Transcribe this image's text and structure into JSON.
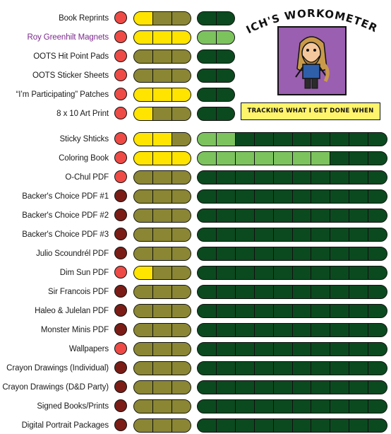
{
  "header": {
    "title": "RICH'S WORKOMETER!",
    "tagline": "TRACKING WHAT I GET DONE WHEN",
    "portrait_icon": "cartoon-portrait-icon",
    "colors": {
      "portrait_bg": "#9a5fb0",
      "tagline_bg": "#fff46b"
    }
  },
  "colors": {
    "dot_on": "#ef4b46",
    "dot_off": "#7b1d16",
    "stage_done": "#ffe400",
    "stage_pending": "#8a8634",
    "progress_done": "#7cc35e",
    "progress_pending": "#0b4a1f"
  },
  "items": [
    {
      "label": "Book Reprints",
      "dot": "on",
      "stages": [
        1,
        0,
        0
      ],
      "progress": {
        "done": 0,
        "total": 2
      }
    },
    {
      "label": "Roy Greenhilt Magnets",
      "highlight": true,
      "dot": "on",
      "stages": [
        1,
        1,
        1
      ],
      "progress": {
        "done": 2,
        "total": 2
      }
    },
    {
      "label": "OOTS Hit Point Pads",
      "dot": "on",
      "stages": [
        0,
        0,
        0
      ],
      "progress": {
        "done": 0,
        "total": 2
      }
    },
    {
      "label": "OOTS Sticker Sheets",
      "dot": "on",
      "stages": [
        0,
        0,
        0
      ],
      "progress": {
        "done": 0,
        "total": 2
      }
    },
    {
      "label": "“I’m Participating” Patches",
      "dot": "on",
      "stages": [
        1,
        1,
        1
      ],
      "progress": {
        "done": 0,
        "total": 2
      }
    },
    {
      "label": "8 x 10 Art Print",
      "dot": "on",
      "stages": [
        1,
        0,
        0
      ],
      "progress": {
        "done": 0,
        "total": 2
      }
    },
    {
      "label": "Sticky Shticks",
      "dot": "on",
      "stages": [
        1,
        1,
        0
      ],
      "progress": {
        "done": 2,
        "total": 10
      }
    },
    {
      "label": "Coloring Book",
      "dot": "on",
      "stages": [
        1,
        1,
        1
      ],
      "progress": {
        "done": 7,
        "total": 10
      }
    },
    {
      "label": "O-Chul PDF",
      "dot": "on",
      "stages": [
        0,
        0,
        0
      ],
      "progress": {
        "done": 0,
        "total": 10
      }
    },
    {
      "label": "Backer's Choice PDF #1",
      "dot": "off",
      "stages": [
        0,
        0,
        0
      ],
      "progress": {
        "done": 0,
        "total": 10
      }
    },
    {
      "label": "Backer's Choice PDF #2",
      "dot": "off",
      "stages": [
        0,
        0,
        0
      ],
      "progress": {
        "done": 0,
        "total": 10
      }
    },
    {
      "label": "Backer's Choice PDF #3",
      "dot": "off",
      "stages": [
        0,
        0,
        0
      ],
      "progress": {
        "done": 0,
        "total": 10
      }
    },
    {
      "label": "Julio Scoundrél PDF",
      "dot": "off",
      "stages": [
        0,
        0,
        0
      ],
      "progress": {
        "done": 0,
        "total": 10
      }
    },
    {
      "label": "Dim Sun PDF",
      "dot": "on",
      "stages": [
        1,
        0,
        0
      ],
      "progress": {
        "done": 0,
        "total": 10
      }
    },
    {
      "label": "Sir Francois  PDF",
      "dot": "off",
      "stages": [
        0,
        0,
        0
      ],
      "progress": {
        "done": 0,
        "total": 10
      }
    },
    {
      "label": "Haleo & Julelan PDF",
      "dot": "off",
      "stages": [
        0,
        0,
        0
      ],
      "progress": {
        "done": 0,
        "total": 10
      }
    },
    {
      "label": "Monster Minis PDF",
      "dot": "off",
      "stages": [
        0,
        0,
        0
      ],
      "progress": {
        "done": 0,
        "total": 10
      }
    },
    {
      "label": "Wallpapers",
      "dot": "on",
      "stages": [
        0,
        0,
        0
      ],
      "progress": {
        "done": 0,
        "total": 10
      }
    },
    {
      "label": "Crayon Drawings (Individual)",
      "dot": "off",
      "stages": [
        0,
        0,
        0
      ],
      "progress": {
        "done": 0,
        "total": 10
      }
    },
    {
      "label": "Crayon Drawings (D&D Party)",
      "dot": "off",
      "stages": [
        0,
        0,
        0
      ],
      "progress": {
        "done": 0,
        "total": 10
      }
    },
    {
      "label": "Signed Books/Prints",
      "dot": "off",
      "stages": [
        0,
        0,
        0
      ],
      "progress": {
        "done": 0,
        "total": 10
      }
    },
    {
      "label": "Digital Portrait Packages",
      "dot": "off",
      "stages": [
        0,
        0,
        0
      ],
      "progress": {
        "done": 0,
        "total": 10
      }
    }
  ]
}
